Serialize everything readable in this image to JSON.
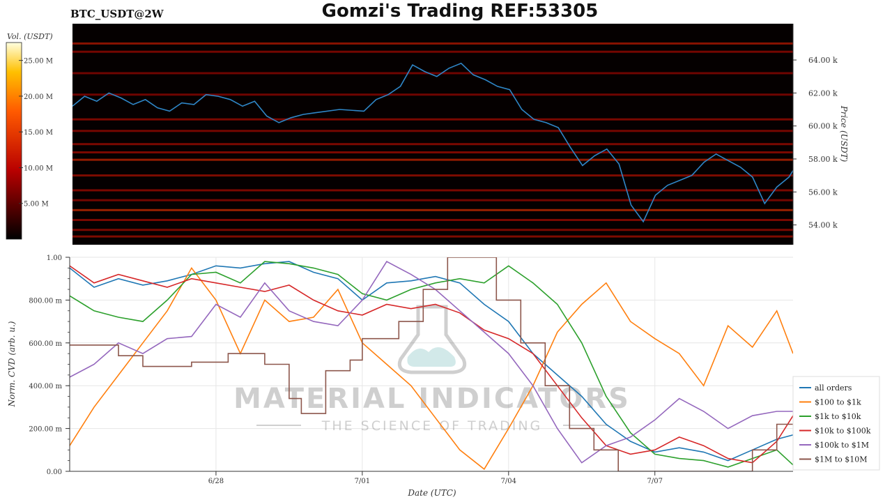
{
  "header": {
    "ticker": "BTC_USDT@2W",
    "title": "Gomzi's Trading REF:53305"
  },
  "colors": {
    "price_line": "#2f87c8",
    "heatmap_bg": "#050000",
    "accent": "#ff6a00"
  },
  "chart_data": [
    {
      "type": "heatmap",
      "name": "Order book liquidity heatmap",
      "colorbar": {
        "label": "Vol. (USDT)",
        "ticks": [
          "5.00 M",
          "10.00 M",
          "15.00 M",
          "20.00 M",
          "25.00 M"
        ],
        "tick_values": [
          5,
          10,
          15,
          20,
          25
        ],
        "range": [
          0,
          27.5
        ],
        "colormap": "hot"
      },
      "yaxis": {
        "label": "Price (USDT)",
        "ticks": [
          "54.00 k",
          "56.00 k",
          "58.00 k",
          "60.00 k",
          "62.00 k",
          "64.00 k"
        ],
        "tick_values": [
          54000,
          56000,
          58000,
          60000,
          62000,
          64000
        ],
        "range": [
          52800,
          66200
        ],
        "position": "right"
      },
      "xrange": [
        "2024-06-25",
        "2024-07-09T20:00"
      ],
      "price_series": [
        [
          "2024-06-25T00:00",
          61200
        ],
        [
          "2024-06-25T06:00",
          61800
        ],
        [
          "2024-06-25T12:00",
          61500
        ],
        [
          "2024-06-25T18:00",
          62000
        ],
        [
          "2024-06-26T00:00",
          61700
        ],
        [
          "2024-06-26T06:00",
          61300
        ],
        [
          "2024-06-26T12:00",
          61600
        ],
        [
          "2024-06-26T18:00",
          61100
        ],
        [
          "2024-06-27T00:00",
          60900
        ],
        [
          "2024-06-27T06:00",
          61400
        ],
        [
          "2024-06-27T12:00",
          61300
        ],
        [
          "2024-06-27T18:00",
          61900
        ],
        [
          "2024-06-28T00:00",
          61800
        ],
        [
          "2024-06-28T06:00",
          61600
        ],
        [
          "2024-06-28T12:00",
          61200
        ],
        [
          "2024-06-28T18:00",
          61500
        ],
        [
          "2024-06-29T00:00",
          60600
        ],
        [
          "2024-06-29T06:00",
          60200
        ],
        [
          "2024-06-29T12:00",
          60500
        ],
        [
          "2024-06-29T18:00",
          60700
        ],
        [
          "2024-06-30T00:00",
          60800
        ],
        [
          "2024-06-30T12:00",
          61000
        ],
        [
          "2024-07-01T00:00",
          60900
        ],
        [
          "2024-07-01T06:00",
          61600
        ],
        [
          "2024-07-01T12:00",
          61900
        ],
        [
          "2024-07-01T18:00",
          62400
        ],
        [
          "2024-07-02T00:00",
          63700
        ],
        [
          "2024-07-02T06:00",
          63300
        ],
        [
          "2024-07-02T12:00",
          63000
        ],
        [
          "2024-07-02T18:00",
          63500
        ],
        [
          "2024-07-03T00:00",
          63800
        ],
        [
          "2024-07-03T06:00",
          63100
        ],
        [
          "2024-07-03T12:00",
          62800
        ],
        [
          "2024-07-03T18:00",
          62400
        ],
        [
          "2024-07-04T00:00",
          62200
        ],
        [
          "2024-07-04T06:00",
          61000
        ],
        [
          "2024-07-04T12:00",
          60400
        ],
        [
          "2024-07-04T18:00",
          60200
        ],
        [
          "2024-07-05T00:00",
          59900
        ],
        [
          "2024-07-05T06:00",
          58700
        ],
        [
          "2024-07-05T12:00",
          57600
        ],
        [
          "2024-07-05T18:00",
          58200
        ],
        [
          "2024-07-06T00:00",
          58600
        ],
        [
          "2024-07-06T06:00",
          57700
        ],
        [
          "2024-07-06T12:00",
          55200
        ],
        [
          "2024-07-06T18:00",
          54200
        ],
        [
          "2024-07-07T00:00",
          55800
        ],
        [
          "2024-07-07T06:00",
          56400
        ],
        [
          "2024-07-07T12:00",
          56700
        ],
        [
          "2024-07-07T18:00",
          57000
        ],
        [
          "2024-07-08T00:00",
          57800
        ],
        [
          "2024-07-08T06:00",
          58300
        ],
        [
          "2024-07-08T12:00",
          57900
        ],
        [
          "2024-07-08T18:00",
          57500
        ],
        [
          "2024-07-09T00:00",
          56900
        ],
        [
          "2024-07-09T06:00",
          55300
        ],
        [
          "2024-07-09T12:00",
          56300
        ],
        [
          "2024-07-09T18:00",
          56900
        ],
        [
          "2024-07-09T20:00",
          57300
        ]
      ],
      "liquidity_bands": [
        {
          "price": 65000,
          "intensity": 0.45
        },
        {
          "price": 64500,
          "intensity": 0.25
        },
        {
          "price": 63200,
          "intensity": 0.2
        },
        {
          "price": 61900,
          "intensity": 0.2
        },
        {
          "price": 60400,
          "intensity": 0.3
        },
        {
          "price": 59700,
          "intensity": 0.25
        },
        {
          "price": 58900,
          "intensity": 0.3
        },
        {
          "price": 58400,
          "intensity": 0.3
        },
        {
          "price": 57950,
          "intensity": 0.55
        },
        {
          "price": 57000,
          "intensity": 0.35
        },
        {
          "price": 56100,
          "intensity": 0.3
        },
        {
          "price": 55500,
          "intensity": 0.25
        },
        {
          "price": 54900,
          "intensity": 0.6
        },
        {
          "price": 54300,
          "intensity": 0.3
        },
        {
          "price": 53700,
          "intensity": 0.3
        },
        {
          "price": 53300,
          "intensity": 0.35
        }
      ]
    },
    {
      "type": "line",
      "name": "Normalized CVD by order size",
      "xlabel": "Date (UTC)",
      "ylabel": "Norm. CVD (arb. u.)",
      "xticks": [
        "6/28",
        "7/01",
        "7/04",
        "7/07"
      ],
      "xtick_values": [
        "2024-06-28",
        "2024-07-01",
        "2024-07-04",
        "2024-07-07"
      ],
      "yticks": [
        "0.00",
        "200.00 m",
        "400.00 m",
        "600.00 m",
        "800.00 m",
        "1.00"
      ],
      "ytick_values": [
        0,
        0.2,
        0.4,
        0.6,
        0.8,
        1.0
      ],
      "ylim": [
        0,
        1.0
      ],
      "xrange": [
        "2024-06-25",
        "2024-07-09T20:00"
      ],
      "grid": true,
      "legend_position": "bottom-right",
      "series": [
        {
          "name": "all orders",
          "color": "#1f77b4",
          "x": [
            "2024-06-25T00:00",
            "2024-06-25T12:00",
            "2024-06-26T00:00",
            "2024-06-26T12:00",
            "2024-06-27T00:00",
            "2024-06-27T12:00",
            "2024-06-28T00:00",
            "2024-06-28T12:00",
            "2024-06-29T00:00",
            "2024-06-29T12:00",
            "2024-06-30T00:00",
            "2024-06-30T12:00",
            "2024-07-01T00:00",
            "2024-07-01T12:00",
            "2024-07-02T00:00",
            "2024-07-02T12:00",
            "2024-07-03T00:00",
            "2024-07-03T12:00",
            "2024-07-04T00:00",
            "2024-07-04T12:00",
            "2024-07-05T00:00",
            "2024-07-05T12:00",
            "2024-07-06T00:00",
            "2024-07-06T12:00",
            "2024-07-07T00:00",
            "2024-07-07T12:00",
            "2024-07-08T00:00",
            "2024-07-08T12:00",
            "2024-07-09T00:00",
            "2024-07-09T12:00",
            "2024-07-09T20:00"
          ],
          "y": [
            0.95,
            0.86,
            0.9,
            0.87,
            0.89,
            0.92,
            0.96,
            0.95,
            0.97,
            0.98,
            0.93,
            0.9,
            0.8,
            0.88,
            0.89,
            0.91,
            0.88,
            0.78,
            0.7,
            0.55,
            0.45,
            0.35,
            0.22,
            0.14,
            0.09,
            0.11,
            0.09,
            0.05,
            0.1,
            0.15,
            0.17
          ]
        },
        {
          "name": "$100 to $1k",
          "color": "#ff7f0e",
          "x": [
            "2024-06-25T00:00",
            "2024-06-25T12:00",
            "2024-06-26T00:00",
            "2024-06-26T12:00",
            "2024-06-27T00:00",
            "2024-06-27T12:00",
            "2024-06-28T00:00",
            "2024-06-28T12:00",
            "2024-06-29T00:00",
            "2024-06-29T12:00",
            "2024-06-30T00:00",
            "2024-06-30T12:00",
            "2024-07-01T00:00",
            "2024-07-01T12:00",
            "2024-07-02T00:00",
            "2024-07-02T12:00",
            "2024-07-03T00:00",
            "2024-07-03T12:00",
            "2024-07-04T00:00",
            "2024-07-04T12:00",
            "2024-07-05T00:00",
            "2024-07-05T12:00",
            "2024-07-06T00:00",
            "2024-07-06T12:00",
            "2024-07-07T00:00",
            "2024-07-07T12:00",
            "2024-07-08T00:00",
            "2024-07-08T12:00",
            "2024-07-09T00:00",
            "2024-07-09T12:00",
            "2024-07-09T20:00"
          ],
          "y": [
            0.12,
            0.3,
            0.45,
            0.6,
            0.75,
            0.95,
            0.8,
            0.55,
            0.8,
            0.7,
            0.72,
            0.85,
            0.6,
            0.5,
            0.4,
            0.25,
            0.1,
            0.01,
            0.2,
            0.4,
            0.65,
            0.78,
            0.88,
            0.7,
            0.62,
            0.55,
            0.4,
            0.68,
            0.58,
            0.75,
            0.55
          ]
        },
        {
          "name": "$1k to $10k",
          "color": "#2ca02c",
          "x": [
            "2024-06-25T00:00",
            "2024-06-25T12:00",
            "2024-06-26T00:00",
            "2024-06-26T12:00",
            "2024-06-27T00:00",
            "2024-06-27T12:00",
            "2024-06-28T00:00",
            "2024-06-28T12:00",
            "2024-06-29T00:00",
            "2024-06-29T12:00",
            "2024-06-30T00:00",
            "2024-06-30T12:00",
            "2024-07-01T00:00",
            "2024-07-01T12:00",
            "2024-07-02T00:00",
            "2024-07-02T12:00",
            "2024-07-03T00:00",
            "2024-07-03T12:00",
            "2024-07-04T00:00",
            "2024-07-04T12:00",
            "2024-07-05T00:00",
            "2024-07-05T12:00",
            "2024-07-06T00:00",
            "2024-07-06T12:00",
            "2024-07-07T00:00",
            "2024-07-07T12:00",
            "2024-07-08T00:00",
            "2024-07-08T12:00",
            "2024-07-09T00:00",
            "2024-07-09T12:00",
            "2024-07-09T20:00"
          ],
          "y": [
            0.82,
            0.75,
            0.72,
            0.7,
            0.8,
            0.92,
            0.93,
            0.88,
            0.98,
            0.97,
            0.95,
            0.92,
            0.83,
            0.8,
            0.85,
            0.88,
            0.9,
            0.88,
            0.96,
            0.88,
            0.78,
            0.6,
            0.35,
            0.18,
            0.08,
            0.06,
            0.05,
            0.02,
            0.06,
            0.1,
            0.03
          ]
        },
        {
          "name": "$10k to $100k",
          "color": "#d62728",
          "x": [
            "2024-06-25T00:00",
            "2024-06-25T12:00",
            "2024-06-26T00:00",
            "2024-06-26T12:00",
            "2024-06-27T00:00",
            "2024-06-27T12:00",
            "2024-06-28T00:00",
            "2024-06-28T12:00",
            "2024-06-29T00:00",
            "2024-06-29T12:00",
            "2024-06-30T00:00",
            "2024-06-30T12:00",
            "2024-07-01T00:00",
            "2024-07-01T12:00",
            "2024-07-02T00:00",
            "2024-07-02T12:00",
            "2024-07-03T00:00",
            "2024-07-03T12:00",
            "2024-07-04T00:00",
            "2024-07-04T12:00",
            "2024-07-05T00:00",
            "2024-07-05T12:00",
            "2024-07-06T00:00",
            "2024-07-06T12:00",
            "2024-07-07T00:00",
            "2024-07-07T12:00",
            "2024-07-08T00:00",
            "2024-07-08T12:00",
            "2024-07-09T00:00",
            "2024-07-09T12:00",
            "2024-07-09T20:00"
          ],
          "y": [
            0.96,
            0.88,
            0.92,
            0.89,
            0.86,
            0.9,
            0.88,
            0.86,
            0.84,
            0.87,
            0.8,
            0.75,
            0.73,
            0.78,
            0.76,
            0.78,
            0.74,
            0.66,
            0.62,
            0.55,
            0.4,
            0.25,
            0.12,
            0.08,
            0.1,
            0.16,
            0.12,
            0.06,
            0.04,
            0.14,
            0.26
          ]
        },
        {
          "name": "$100k to $1M",
          "color": "#9467bd",
          "x": [
            "2024-06-25T00:00",
            "2024-06-25T12:00",
            "2024-06-26T00:00",
            "2024-06-26T12:00",
            "2024-06-27T00:00",
            "2024-06-27T12:00",
            "2024-06-28T00:00",
            "2024-06-28T12:00",
            "2024-06-29T00:00",
            "2024-06-29T12:00",
            "2024-06-30T00:00",
            "2024-06-30T12:00",
            "2024-07-01T00:00",
            "2024-07-01T12:00",
            "2024-07-02T00:00",
            "2024-07-02T12:00",
            "2024-07-03T00:00",
            "2024-07-03T12:00",
            "2024-07-04T00:00",
            "2024-07-04T12:00",
            "2024-07-05T00:00",
            "2024-07-05T12:00",
            "2024-07-06T00:00",
            "2024-07-06T12:00",
            "2024-07-07T00:00",
            "2024-07-07T12:00",
            "2024-07-08T00:00",
            "2024-07-08T12:00",
            "2024-07-09T00:00",
            "2024-07-09T12:00",
            "2024-07-09T20:00"
          ],
          "y": [
            0.44,
            0.5,
            0.6,
            0.55,
            0.62,
            0.63,
            0.78,
            0.72,
            0.88,
            0.75,
            0.7,
            0.68,
            0.8,
            0.98,
            0.92,
            0.85,
            0.75,
            0.65,
            0.55,
            0.4,
            0.2,
            0.04,
            0.12,
            0.16,
            0.24,
            0.34,
            0.28,
            0.2,
            0.26,
            0.28,
            0.28
          ]
        },
        {
          "name": "$1M to $10M",
          "color": "#8c564b",
          "step": true,
          "x": [
            "2024-06-25T00:00",
            "2024-06-26T00:00",
            "2024-06-26T12:00",
            "2024-06-27T12:00",
            "2024-06-28T06:00",
            "2024-06-29T00:00",
            "2024-06-29T12:00",
            "2024-06-29T18:00",
            "2024-06-30T06:00",
            "2024-06-30T18:00",
            "2024-07-01T00:00",
            "2024-07-01T18:00",
            "2024-07-02T06:00",
            "2024-07-02T18:00",
            "2024-07-03T06:00",
            "2024-07-03T18:00",
            "2024-07-04T06:00",
            "2024-07-04T18:00",
            "2024-07-05T06:00",
            "2024-07-05T18:00",
            "2024-07-06T06:00",
            "2024-07-07T12:00",
            "2024-07-08T12:00",
            "2024-07-09T00:00",
            "2024-07-09T12:00",
            "2024-07-09T20:00"
          ],
          "y": [
            0.59,
            0.54,
            0.49,
            0.51,
            0.55,
            0.5,
            0.34,
            0.27,
            0.47,
            0.52,
            0.62,
            0.7,
            0.85,
            1.0,
            1.0,
            0.8,
            0.6,
            0.4,
            0.2,
            0.1,
            0.0,
            0.0,
            0.0,
            0.1,
            0.22,
            0.22
          ]
        }
      ]
    }
  ],
  "legend": {
    "items": [
      "all orders",
      "$100 to $1k",
      "$1k to $10k",
      "$10k to $100k",
      "$100k to $1M",
      "$1M to $10M"
    ]
  },
  "watermark": {
    "line1": "MATERIAL INDICATORS",
    "line2": "THE SCIENCE OF TRADING"
  }
}
